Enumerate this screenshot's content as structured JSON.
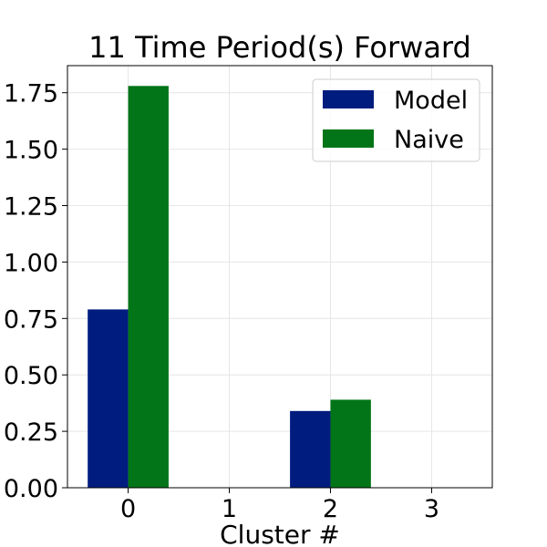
{
  "chart_data": {
    "type": "bar",
    "title": "11 Time Period(s) Forward",
    "xlabel": "Cluster #",
    "ylabel": "",
    "categories": [
      "0",
      "1",
      "2",
      "3"
    ],
    "series": [
      {
        "name": "Model",
        "values": [
          0.79,
          0,
          0.34,
          0
        ],
        "color": "#001c7f"
      },
      {
        "name": "Naive",
        "values": [
          1.78,
          0,
          0.39,
          0
        ],
        "color": "#017517"
      }
    ],
    "y_ticks": [
      "0.00",
      "0.25",
      "0.50",
      "0.75",
      "1.00",
      "1.25",
      "1.50",
      "1.75"
    ],
    "ylim": [
      0,
      1.87
    ],
    "grid": true,
    "legend_position": "top-right"
  }
}
